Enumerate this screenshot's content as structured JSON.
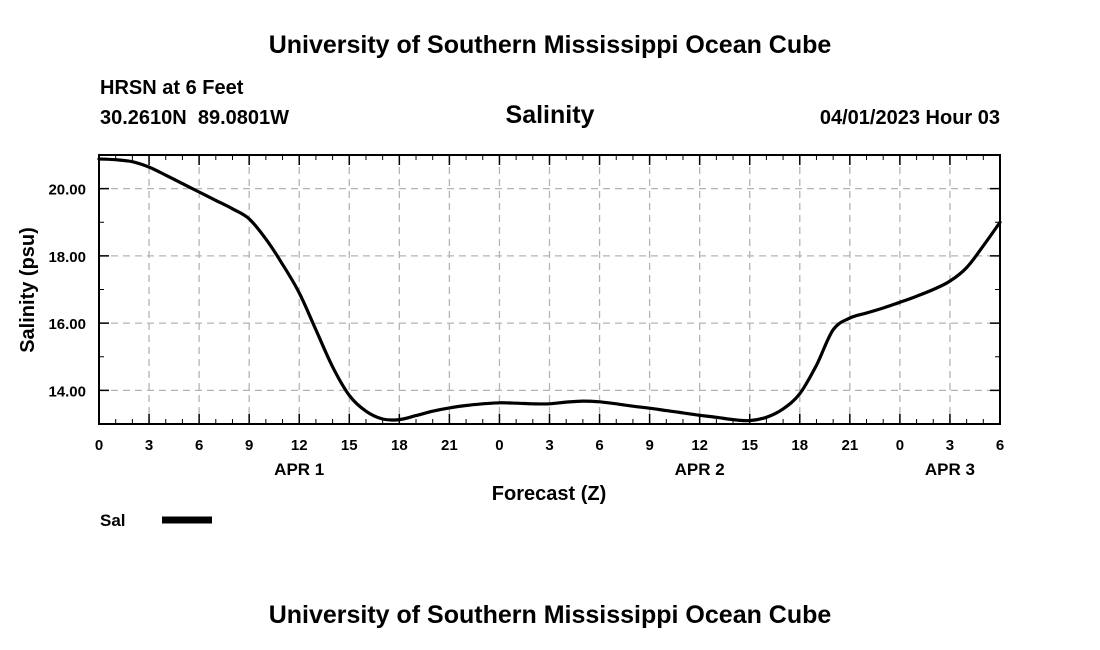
{
  "header": {
    "title": "University of Southern Mississippi Ocean Cube",
    "station_name": "HRSN at 6 Feet",
    "coordinates": "30.2610N  89.0801W",
    "datetime": "04/01/2023 Hour 03"
  },
  "footer": {
    "title": "University of Southern Mississippi Ocean Cube"
  },
  "chart_data": {
    "type": "line",
    "title": "Salinity",
    "xlabel": "Forecast (Z)",
    "ylabel": "Salinity (psu)",
    "xlim": [
      0,
      54
    ],
    "ylim": [
      13.0,
      21.0
    ],
    "grid": true,
    "x_tick_labels": [
      "0",
      "3",
      "6",
      "9",
      "12",
      "15",
      "18",
      "21",
      "0",
      "3",
      "6",
      "9",
      "12",
      "15",
      "18",
      "21",
      "0",
      "3",
      "6"
    ],
    "y_tick_values": [
      14,
      16,
      18,
      20
    ],
    "y_tick_labels": [
      "14.00",
      "16.00",
      "18.00",
      "20.00"
    ],
    "date_labels": [
      {
        "hour": 12,
        "label": "APR 1"
      },
      {
        "hour": 36,
        "label": "APR 2"
      },
      {
        "hour": 51,
        "label": "APR 3"
      }
    ],
    "legend": {
      "position": "bottom-left",
      "label": "Sal"
    },
    "series": [
      {
        "name": "Sal",
        "color": "#000000",
        "x": [
          0,
          1,
          2,
          3,
          4,
          5,
          6,
          7,
          8,
          9,
          10,
          11,
          12,
          13,
          14,
          15,
          16,
          17,
          18,
          19,
          20,
          21,
          22,
          23,
          24,
          25,
          26,
          27,
          28,
          29,
          30,
          31,
          32,
          33,
          34,
          35,
          36,
          37,
          38,
          39,
          40,
          41,
          42,
          43,
          44,
          45,
          46,
          47,
          48,
          49,
          50,
          51,
          52,
          53,
          54
        ],
        "values": [
          20.88,
          20.86,
          20.8,
          20.64,
          20.4,
          20.15,
          19.9,
          19.65,
          19.4,
          19.1,
          18.5,
          17.75,
          16.9,
          15.8,
          14.7,
          13.85,
          13.38,
          13.15,
          13.13,
          13.25,
          13.38,
          13.48,
          13.55,
          13.6,
          13.63,
          13.62,
          13.6,
          13.6,
          13.65,
          13.68,
          13.66,
          13.6,
          13.53,
          13.47,
          13.4,
          13.33,
          13.26,
          13.2,
          13.13,
          13.1,
          13.2,
          13.45,
          13.9,
          14.75,
          15.8,
          16.15,
          16.3,
          16.45,
          16.62,
          16.8,
          17.0,
          17.25,
          17.65,
          18.3,
          19.0
        ]
      }
    ]
  }
}
